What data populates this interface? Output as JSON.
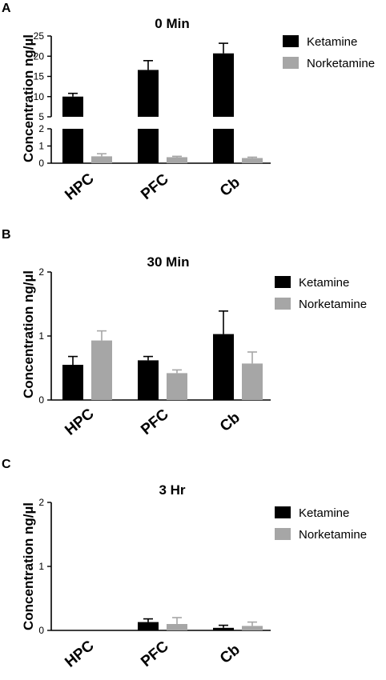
{
  "colors": {
    "ketamine": "#000000",
    "norketamine": "#a6a6a6",
    "axis": "#000000"
  },
  "chart_data": [
    {
      "panel": "A",
      "type": "bar",
      "title": "0 Min",
      "ylabel": "Concentration ng/µl",
      "categories": [
        "HPC",
        "PFC",
        "Cb"
      ],
      "series": [
        {
          "name": "Ketamine",
          "values": [
            10.0,
            16.6,
            20.7
          ],
          "errors": [
            0.8,
            2.3,
            2.5
          ]
        },
        {
          "name": "Norketamine",
          "values": [
            0.4,
            0.35,
            0.3
          ],
          "errors": [
            0.15,
            0.05,
            0.05
          ]
        }
      ],
      "y_axis_break": {
        "lower_range": [
          0,
          2
        ],
        "upper_range": [
          5,
          25
        ]
      },
      "y_ticks_lower": [
        "0",
        "1",
        "2"
      ],
      "y_ticks_upper": [
        "5",
        "10",
        "15",
        "20",
        "25"
      ],
      "legend_position": "top-right"
    },
    {
      "panel": "B",
      "type": "bar",
      "title": "30 Min",
      "ylabel": "Concentration ng/µl",
      "categories": [
        "HPC",
        "PFC",
        "Cb"
      ],
      "series": [
        {
          "name": "Ketamine",
          "values": [
            0.55,
            0.62,
            1.03
          ],
          "errors": [
            0.13,
            0.06,
            0.36
          ]
        },
        {
          "name": "Norketamine",
          "values": [
            0.93,
            0.42,
            0.57
          ],
          "errors": [
            0.15,
            0.05,
            0.18
          ]
        }
      ],
      "ylim": [
        0,
        2
      ],
      "y_ticks": [
        "0",
        "1",
        "2"
      ],
      "legend_position": "top-right"
    },
    {
      "panel": "C",
      "type": "bar",
      "title": "3 Hr",
      "ylabel": "Concentration ng/µl",
      "categories": [
        "HPC",
        "PFC",
        "Cb"
      ],
      "series": [
        {
          "name": "Ketamine",
          "values": [
            0.0,
            0.13,
            0.04
          ],
          "errors": [
            0.0,
            0.05,
            0.04
          ]
        },
        {
          "name": "Norketamine",
          "values": [
            0.0,
            0.1,
            0.07
          ],
          "errors": [
            0.0,
            0.1,
            0.06
          ]
        }
      ],
      "ylim": [
        0,
        2
      ],
      "y_ticks": [
        "0",
        "1",
        "2"
      ],
      "legend_position": "top-right"
    }
  ]
}
